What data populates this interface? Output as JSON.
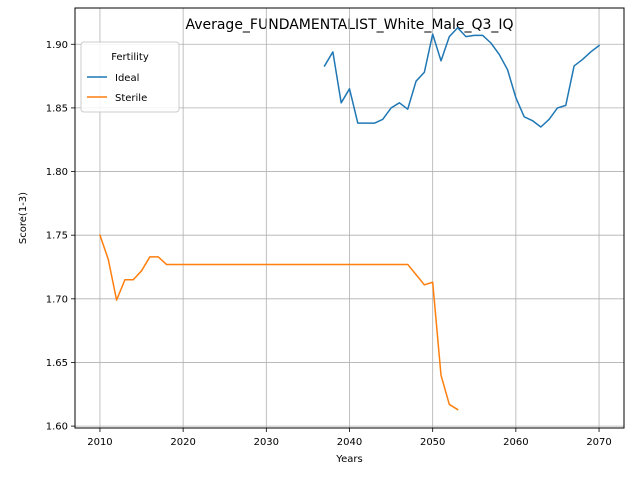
{
  "chart_data": {
    "type": "line",
    "title": "Average_FUNDAMENTALIST_White_Male_Q3_IQ",
    "xlabel": "Years",
    "ylabel": "Score(1-3)",
    "xlim": [
      2007,
      2073
    ],
    "ylim": [
      1.5985,
      1.9285
    ],
    "xticks": [
      2010,
      2020,
      2030,
      2040,
      2050,
      2060,
      2070
    ],
    "yticks": [
      1.6,
      1.65,
      1.7,
      1.75,
      1.8,
      1.85,
      1.9
    ],
    "ytick_labels": [
      "1.60",
      "1.65",
      "1.70",
      "1.75",
      "1.80",
      "1.85",
      "1.90"
    ],
    "grid": true,
    "legend": {
      "title": "Fertility",
      "placement": "top-left"
    },
    "series": [
      {
        "name": "Ideal",
        "color": "#1f77b4",
        "x": [
          2037,
          2038,
          2039,
          2040,
          2041,
          2042,
          2043,
          2044,
          2045,
          2046,
          2047,
          2048,
          2049,
          2050,
          2051,
          2052,
          2053,
          2054,
          2055,
          2056,
          2057,
          2058,
          2059,
          2060,
          2061,
          2062,
          2063,
          2064,
          2065,
          2066,
          2067,
          2068,
          2069,
          2070
        ],
        "values": [
          1.883,
          1.894,
          1.854,
          1.865,
          1.838,
          1.838,
          1.838,
          1.841,
          1.85,
          1.854,
          1.849,
          1.871,
          1.878,
          1.908,
          1.887,
          1.906,
          1.913,
          1.906,
          1.907,
          1.907,
          1.901,
          1.892,
          1.88,
          1.858,
          1.843,
          1.84,
          1.835,
          1.841,
          1.85,
          1.852,
          1.883,
          1.888,
          1.894,
          1.899
        ]
      },
      {
        "name": "Sterile",
        "color": "#ff7f0e",
        "x": [
          2010,
          2011,
          2012,
          2013,
          2014,
          2015,
          2016,
          2017,
          2018,
          2019,
          2020,
          2021,
          2022,
          2023,
          2024,
          2025,
          2026,
          2027,
          2028,
          2029,
          2030,
          2031,
          2032,
          2033,
          2034,
          2035,
          2036,
          2037,
          2038,
          2039,
          2040,
          2041,
          2042,
          2043,
          2044,
          2045,
          2046,
          2047,
          2048,
          2049,
          2050,
          2051,
          2052,
          2053
        ],
        "values": [
          1.75,
          1.731,
          1.699,
          1.715,
          1.715,
          1.722,
          1.733,
          1.733,
          1.727,
          1.727,
          1.727,
          1.727,
          1.727,
          1.727,
          1.727,
          1.727,
          1.727,
          1.727,
          1.727,
          1.727,
          1.727,
          1.727,
          1.727,
          1.727,
          1.727,
          1.727,
          1.727,
          1.727,
          1.727,
          1.727,
          1.727,
          1.727,
          1.727,
          1.727,
          1.727,
          1.727,
          1.727,
          1.727,
          1.719,
          1.711,
          1.713,
          1.64,
          1.617,
          1.613
        ]
      }
    ]
  }
}
